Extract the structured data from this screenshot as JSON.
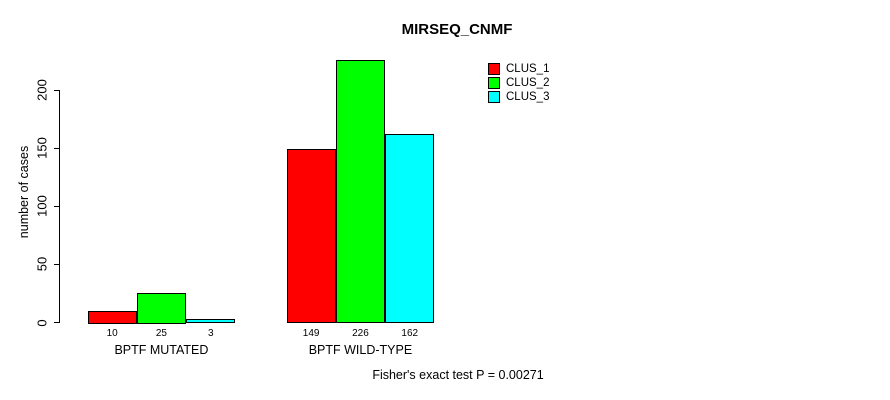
{
  "chart_data": {
    "type": "bar",
    "title": "MIRSEQ_CNMF",
    "ylabel": "number of cases",
    "xlabel": "",
    "categories": [
      "BPTF MUTATED",
      "BPTF WILD-TYPE"
    ],
    "series": [
      {
        "name": "CLUS_1",
        "color": "#FF0000",
        "values": [
          10,
          149
        ]
      },
      {
        "name": "CLUS_2",
        "color": "#00FF00",
        "values": [
          25,
          226
        ]
      },
      {
        "name": "CLUS_3",
        "color": "#00FFFF",
        "values": [
          3,
          162
        ]
      }
    ],
    "show_value_labels": true,
    "value_labels": [
      [
        10,
        25,
        3
      ],
      [
        149,
        226,
        162
      ]
    ],
    "yticks": [
      0,
      50,
      100,
      150,
      200
    ],
    "ylim": [
      0,
      233
    ],
    "grid": false,
    "legend_position": "top-right",
    "annotation": "Fisher's exact test P = 0.00271",
    "colors": {
      "bar_border": "#000000",
      "axis": "#000000",
      "text": "#000000",
      "background": "#FFFFFF"
    }
  }
}
